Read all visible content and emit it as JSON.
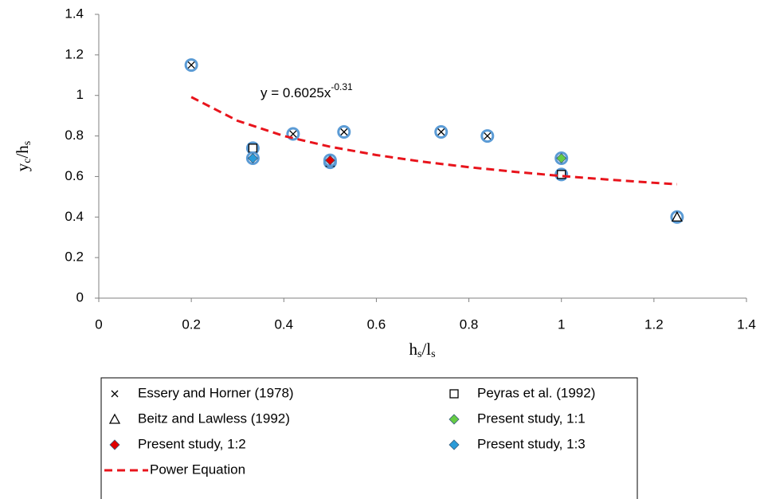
{
  "chart_data": {
    "type": "scatter",
    "x_label": [
      {
        "text": "h",
        "sub": false
      },
      {
        "text": "s",
        "sub": true
      },
      {
        "text": "/l",
        "sub": false
      },
      {
        "text": "s",
        "sub": true
      }
    ],
    "y_label": [
      {
        "text": "y",
        "sub": false
      },
      {
        "text": "c",
        "sub": true
      },
      {
        "text": "/h",
        "sub": false
      },
      {
        "text": "s",
        "sub": true
      }
    ],
    "annotation": {
      "text": "y = 0.6025x",
      "superscript": "-0.31"
    },
    "xlim": [
      0,
      1.4
    ],
    "xticks": [
      0,
      0.2,
      0.4,
      0.6,
      0.8,
      1,
      1.2,
      1.4
    ],
    "ylim": [
      0,
      1.4
    ],
    "yticks": [
      0,
      0.2,
      0.4,
      0.6,
      0.8,
      1,
      1.2,
      1.4
    ],
    "marker_ring_color": "#5b9bd5",
    "series": [
      {
        "name": "Essery and Horner (1978)",
        "marker": "x",
        "color": "#000000",
        "x": [
          0.2,
          0.42,
          0.53,
          0.74,
          0.84
        ],
        "values": [
          1.15,
          0.81,
          0.82,
          0.82,
          0.8
        ]
      },
      {
        "name": "Peyras et al. (1992)",
        "marker": "square",
        "color": "#000000",
        "x": [
          0.333,
          0.5,
          1.0
        ],
        "values": [
          0.74,
          0.67,
          0.61
        ]
      },
      {
        "name": "Beitz and Lawless (1992)",
        "marker": "triangle",
        "color": "#000000",
        "x": [
          1.25
        ],
        "values": [
          0.4
        ]
      },
      {
        "name": "Present study, 1:1",
        "marker": "diamond",
        "color": "#66cc44",
        "x": [
          1.0
        ],
        "values": [
          0.69
        ]
      },
      {
        "name": "Present study, 1:2",
        "marker": "diamond",
        "color": "#e00000",
        "x": [
          0.5
        ],
        "values": [
          0.68
        ]
      },
      {
        "name": "Present study, 1:3",
        "marker": "diamond",
        "color": "#2b9bd8",
        "x": [
          0.333
        ],
        "values": [
          0.69
        ]
      },
      {
        "name": "Power Equation",
        "marker": "dashed-line",
        "color": "#e8141c",
        "x": [
          0.2,
          0.3,
          0.4,
          0.5,
          0.6,
          0.7,
          0.8,
          0.9,
          1.0,
          1.1,
          1.2,
          1.25
        ],
        "values": [
          0.992,
          0.875,
          0.8,
          0.747,
          0.706,
          0.673,
          0.646,
          0.623,
          0.6025,
          0.585,
          0.569,
          0.562
        ]
      }
    ]
  }
}
